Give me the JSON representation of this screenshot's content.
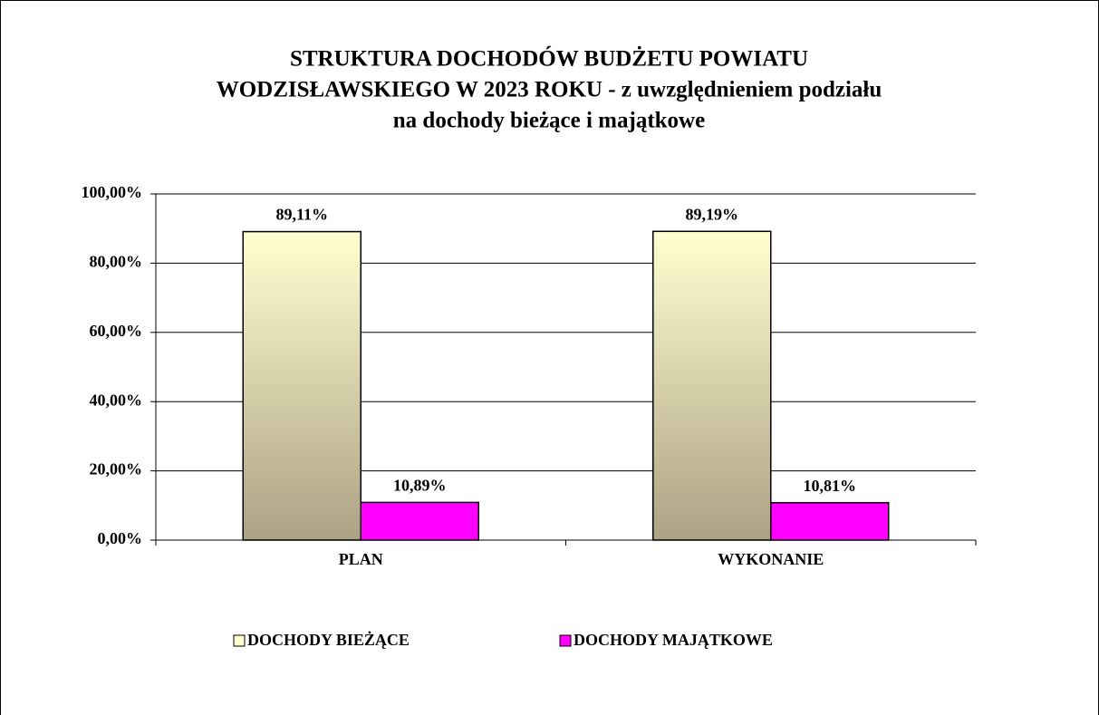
{
  "chart_data": {
    "type": "bar",
    "title": [
      "STRUKTURA DOCHODÓW BUDŻETU POWIATU",
      "WODZISŁAWSKIEGO W 2023 ROKU - z uwzględnieniem podziału",
      "na dochody bieżące i majątkowe"
    ],
    "categories": [
      "PLAN",
      "WYKONANIE"
    ],
    "series": [
      {
        "name": "DOCHODY BIEŻĄCE",
        "color": "#ffffd0",
        "values": [
          89.11,
          89.19
        ],
        "value_labels": [
          "89,11%",
          "89,19%"
        ]
      },
      {
        "name": "DOCHODY MAJĄTKOWE",
        "color": "#ff00ff",
        "values": [
          10.89,
          10.81
        ],
        "value_labels": [
          "10,89%",
          "10,81%"
        ]
      }
    ],
    "ylim": [
      0,
      100
    ],
    "yticks": [
      {
        "value": 0,
        "label": "0,00%"
      },
      {
        "value": 20,
        "label": "20,00%"
      },
      {
        "value": 40,
        "label": "40,00%"
      },
      {
        "value": 60,
        "label": "60,00%"
      },
      {
        "value": 80,
        "label": "80,00%"
      },
      {
        "value": 100,
        "label": "100,00%"
      }
    ],
    "grid": true,
    "legend": "bottom"
  }
}
